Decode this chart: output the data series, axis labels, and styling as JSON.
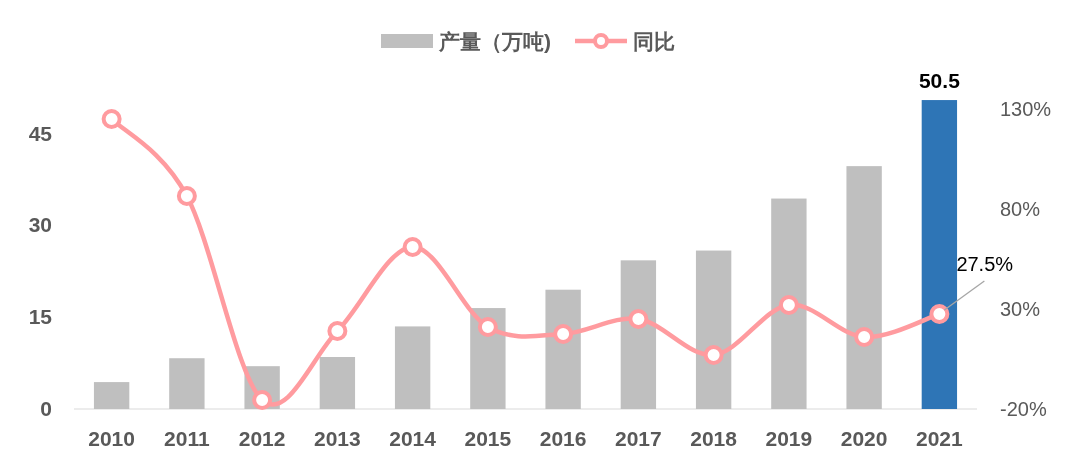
{
  "chart_data": {
    "type": "bar",
    "categories": [
      "2010",
      "2011",
      "2012",
      "2013",
      "2014",
      "2015",
      "2016",
      "2017",
      "2018",
      "2019",
      "2020",
      "2021"
    ],
    "series": [
      {
        "name": "产量（万吨)",
        "colors": [
          "#bfbfbf",
          "#bfbfbf",
          "#bfbfbf",
          "#bfbfbf",
          "#bfbfbf",
          "#bfbfbf",
          "#bfbfbf",
          "#bfbfbf",
          "#bfbfbf",
          "#bfbfbf",
          "#bfbfbf",
          "#2e75b6"
        ],
        "values": [
          4.4,
          8.3,
          7.0,
          8.5,
          13.5,
          16.5,
          19.5,
          24.3,
          25.9,
          34.4,
          39.7,
          50.5
        ],
        "value_labels": [
          null,
          null,
          null,
          null,
          null,
          null,
          null,
          null,
          null,
          null,
          null,
          "50.5"
        ]
      },
      {
        "name": "同比",
        "type": "line",
        "axis": "y2",
        "color": "#ff9b9f",
        "marker": "circle",
        "values": [
          125,
          86.5,
          -15.5,
          19,
          61,
          21,
          17.5,
          25,
          7,
          32,
          16,
          27.5
        ],
        "value_labels": [
          null,
          null,
          null,
          null,
          null,
          null,
          null,
          null,
          null,
          null,
          null,
          "27.5%"
        ]
      }
    ],
    "ylim": [
      0,
      51
    ],
    "yticks": [
      0,
      15,
      30,
      45
    ],
    "y2lim": [
      -20,
      136
    ],
    "y2ticks": [
      {
        "value": -20,
        "label": "-20%"
      },
      {
        "value": 30,
        "label": "30%"
      },
      {
        "value": 80,
        "label": "80%"
      },
      {
        "value": 130,
        "label": "130%"
      }
    ],
    "legend": "top",
    "grid": false
  }
}
